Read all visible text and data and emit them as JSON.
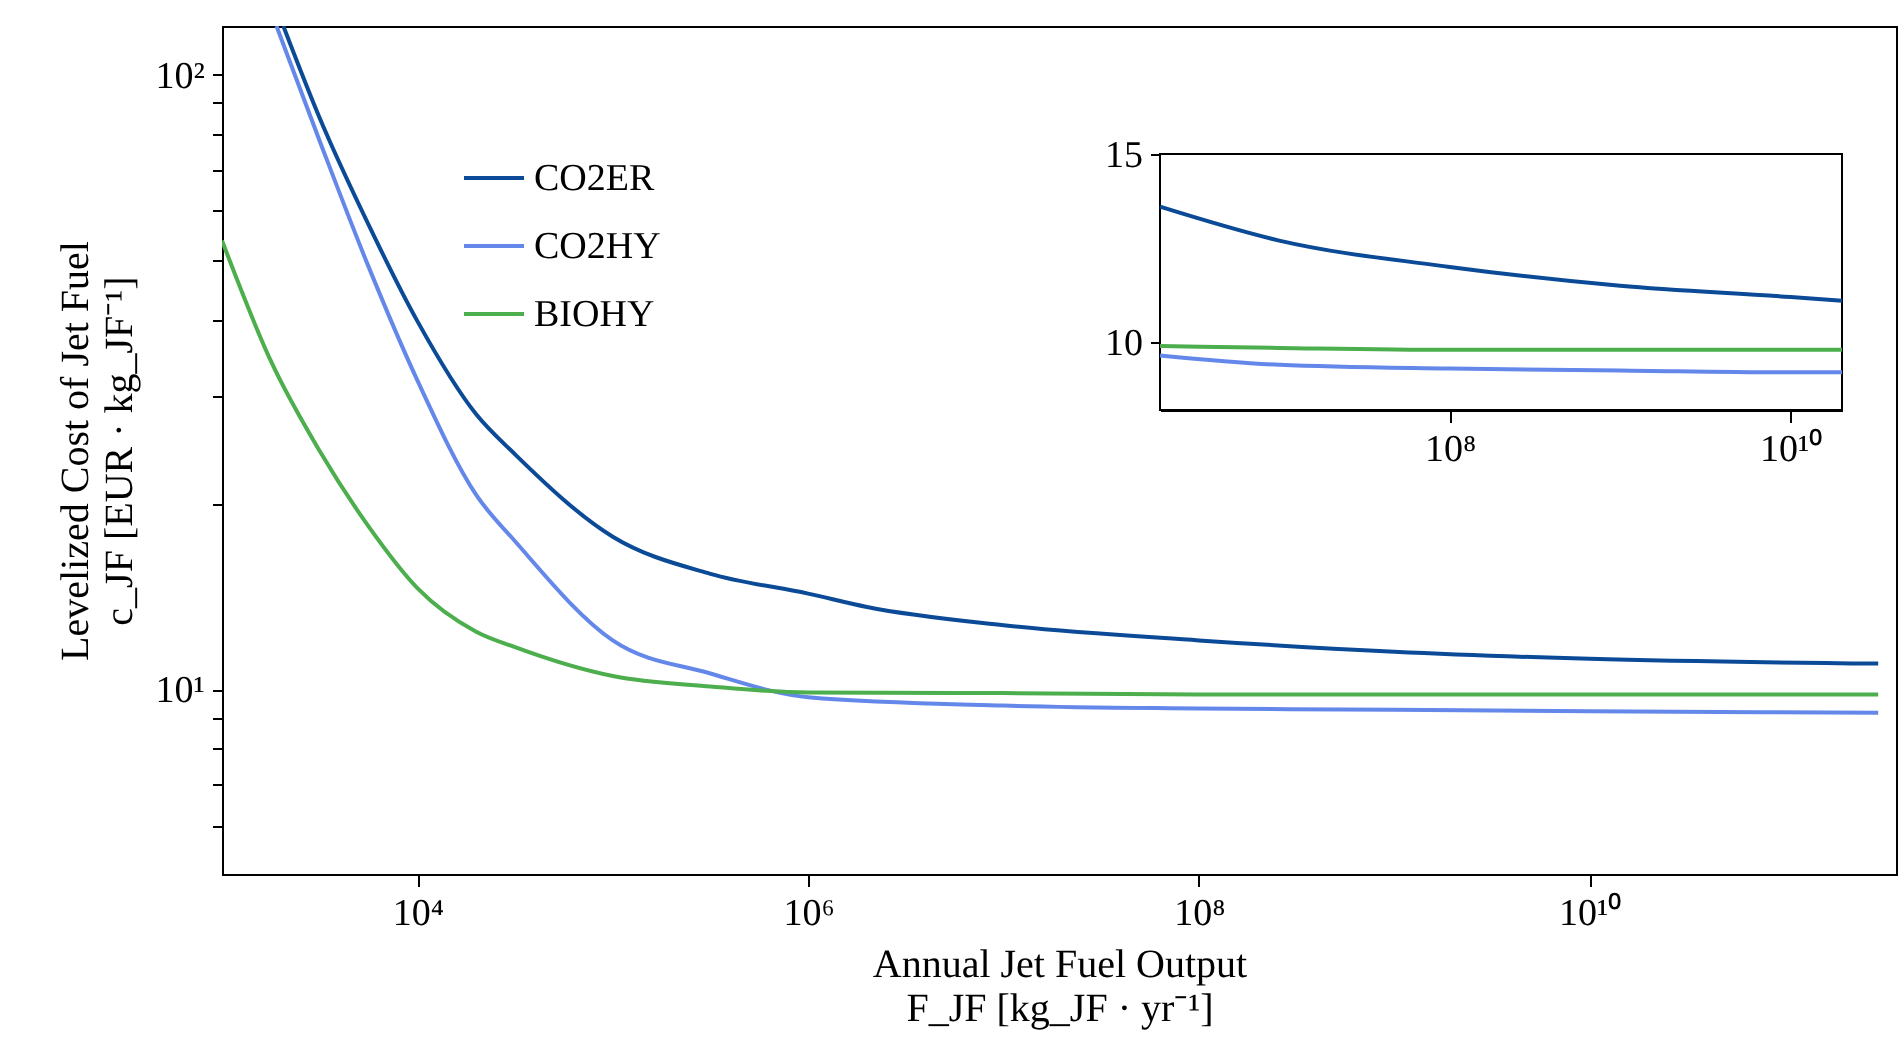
{
  "chart_data": [
    {
      "type": "line",
      "xlabel": "Annual Jet Fuel Output\nF_JF [kg_JF · yr⁻¹]",
      "ylabel": "Levelized Cost of Jet Fuel\nc_JF [EUR · kg_JF⁻¹]",
      "log": "xy",
      "xlim": [
        1000,
        370000000000
      ],
      "ylim": [
        5,
        120
      ],
      "xticks": [
        {
          "value": 10000,
          "label": "10⁴"
        },
        {
          "value": 1000000,
          "label": "10⁶"
        },
        {
          "value": 100000000,
          "label": "10⁸"
        },
        {
          "value": 10000000000,
          "label": "10¹⁰"
        }
      ],
      "yticks": [
        {
          "value": 6,
          "label": null
        },
        {
          "value": 7,
          "label": null
        },
        {
          "value": 8,
          "label": null
        },
        {
          "value": 9,
          "label": null
        },
        {
          "value": 10,
          "label": "10¹"
        },
        {
          "value": 20,
          "label": null
        },
        {
          "value": 30,
          "label": null
        },
        {
          "value": 40,
          "label": null
        },
        {
          "value": 50,
          "label": null
        },
        {
          "value": 60,
          "label": null
        },
        {
          "value": 70,
          "label": null
        },
        {
          "value": 80,
          "label": null
        },
        {
          "value": 90,
          "label": null
        },
        {
          "value": 100,
          "label": "10²"
        }
      ],
      "grid": false,
      "legend": "top left",
      "series": [
        {
          "name": "CO2ER",
          "color": "#0b4a96",
          "x": [
            2060,
            3162,
            5623,
            10000,
            20000,
            31623,
            100000,
            316228,
            1000000,
            2000000,
            10000000,
            100000000,
            1000000000,
            10000000000,
            300000000000
          ],
          "values": [
            120,
            85,
            57,
            39.7,
            28,
            24.1,
            17.7,
            15.4,
            14.3,
            13.6,
            12.7,
            12,
            11.5,
            11.2,
            11
          ]
        },
        {
          "name": "CO2HY",
          "color": "#6487ea",
          "x": [
            1900,
            3162,
            5623,
            10000,
            20000,
            31623,
            100000,
            316228,
            1000000,
            10000000,
            100000000,
            1000000000,
            10000000000,
            300000000000
          ],
          "values": [
            120,
            78,
            48.7,
            31.8,
            20.7,
            17.4,
            12,
            10.6,
            9.7,
            9.4,
            9.3,
            9.25,
            9.2,
            9.15
          ]
        },
        {
          "name": "BIOHY",
          "color": "#4cae4c",
          "x": [
            1000,
            1778,
            3162,
            5623,
            10000,
            20000,
            31623,
            100000,
            316228,
            1000000,
            10000000,
            100000000,
            1000000000,
            10000000000,
            300000000000
          ],
          "values": [
            53.7,
            34.2,
            24.4,
            18.4,
            14.6,
            12.4,
            11.7,
            10.5,
            10.1,
            9.87,
            9.85,
            9.8,
            9.8,
            9.8,
            9.8
          ]
        }
      ]
    },
    {
      "type": "line",
      "log": "x",
      "xlim": [
        2000000,
        20000000000
      ],
      "ylim": [
        8.2,
        15
      ],
      "xticks": [
        {
          "value": 100000000,
          "label": "10⁸"
        },
        {
          "value": 10000000000,
          "label": "10¹⁰"
        }
      ],
      "yticks": [
        10,
        15
      ],
      "grid": false,
      "x": [
        2000000,
        10000000,
        100000000,
        1000000000,
        10000000000,
        20000000000
      ],
      "series": [
        {
          "color": "#0b4a96",
          "values": [
            13.6,
            12.7,
            12,
            11.5,
            11.2,
            11.1
          ]
        },
        {
          "color": "#6487ea",
          "values": [
            9.65,
            9.4,
            9.3,
            9.25,
            9.2,
            9.2
          ]
        },
        {
          "color": "#4cae4c",
          "values": [
            9.9,
            9.85,
            9.8,
            9.8,
            9.8,
            9.8
          ]
        }
      ]
    }
  ]
}
